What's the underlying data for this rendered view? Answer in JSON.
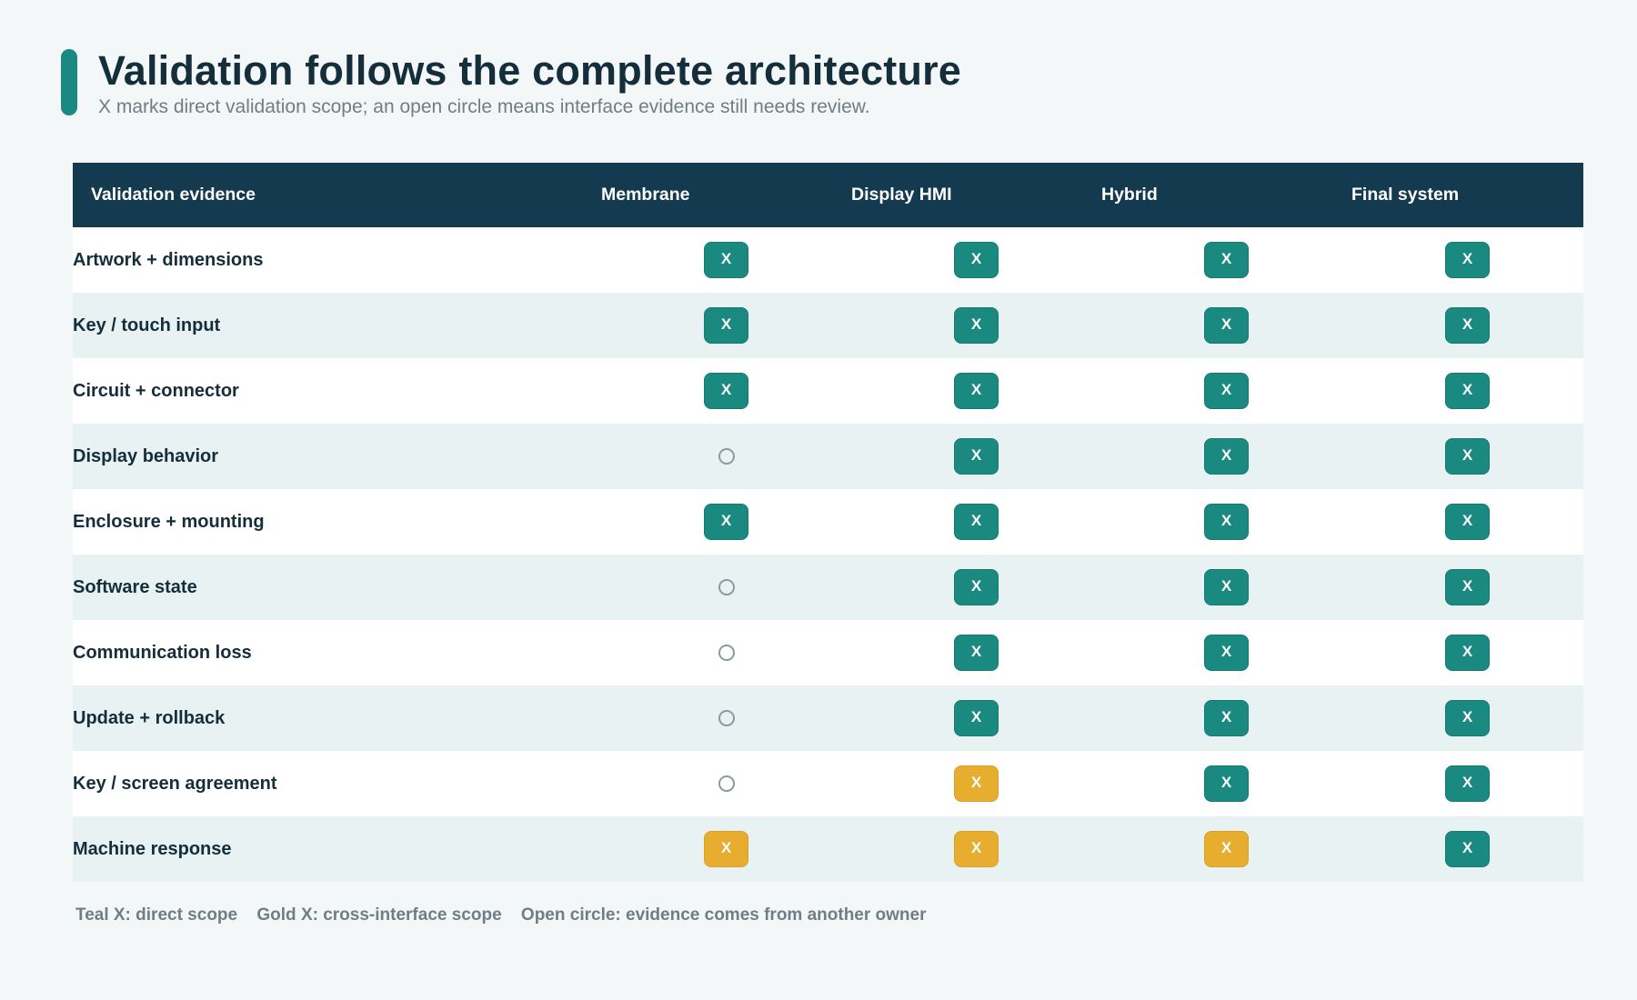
{
  "header": {
    "title": "Validation follows the complete architecture",
    "subtitle": "X marks direct validation scope; an open circle means interface evidence still needs review."
  },
  "table": {
    "columns": [
      "Validation evidence",
      "Membrane",
      "Display HMI",
      "Hybrid",
      "Final system"
    ],
    "mark_text": "X",
    "rows": [
      {
        "label": "Artwork + dimensions",
        "marks": [
          "teal",
          "teal",
          "teal",
          "teal"
        ]
      },
      {
        "label": "Key / touch input",
        "marks": [
          "teal",
          "teal",
          "teal",
          "teal"
        ]
      },
      {
        "label": "Circuit + connector",
        "marks": [
          "teal",
          "teal",
          "teal",
          "teal"
        ]
      },
      {
        "label": "Display behavior",
        "marks": [
          "circle",
          "teal",
          "teal",
          "teal"
        ]
      },
      {
        "label": "Enclosure + mounting",
        "marks": [
          "teal",
          "teal",
          "teal",
          "teal"
        ]
      },
      {
        "label": "Software state",
        "marks": [
          "circle",
          "teal",
          "teal",
          "teal"
        ]
      },
      {
        "label": "Communication loss",
        "marks": [
          "circle",
          "teal",
          "teal",
          "teal"
        ]
      },
      {
        "label": "Update + rollback",
        "marks": [
          "circle",
          "teal",
          "teal",
          "teal"
        ]
      },
      {
        "label": "Key / screen agreement",
        "marks": [
          "circle",
          "gold",
          "teal",
          "teal"
        ]
      },
      {
        "label": "Machine response",
        "marks": [
          "gold",
          "gold",
          "gold",
          "teal"
        ]
      }
    ]
  },
  "legend": {
    "teal": "Teal X: direct scope",
    "gold": "Gold X: cross-interface scope",
    "circle": "Open circle: evidence comes from another owner"
  },
  "colors": {
    "accent": "#1a8a80",
    "header_bg": "#143a50",
    "teal": "#1a8a80",
    "gold": "#e6ad2f",
    "row_alt": "#e8f2f3"
  }
}
